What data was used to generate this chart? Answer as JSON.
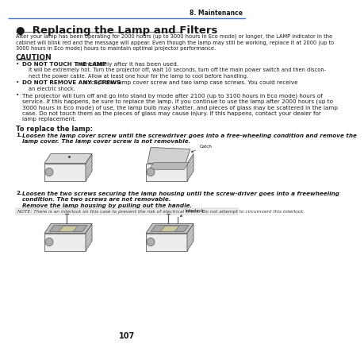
{
  "page_number": "107",
  "chapter": "8. Maintenance",
  "bg_color": "#ffffff",
  "text_color": "#1a1a1a",
  "header_line_color": "#4472c4",
  "section_icon": "●",
  "section_title": "Replacing the Lamp and Filters",
  "intro_line1": "After your lamp has been operating for 2000 hours (up to 3000 hours in Eco mode) or longer, the LAMP indicator in the",
  "intro_line2": "cabinet will blink red and the message will appear. Even though the lamp may still be working, replace it at 2000 (up to",
  "intro_line3": "3000 hours in Eco mode) hours to maintain optimal projector performance.",
  "caution_label": "CAUTION",
  "b1_bold": "DO NOT TOUCH THE LAMP",
  "b1_rest": " immediately after it has been used.",
  "b1_sub1": "It will be extremely hot. Turn the projector off, wait 10 seconds, turn off the main power switch and then discon-",
  "b1_sub2": "nect the power cable. Allow at least one hour for the lamp to cool before handling.",
  "b2_bold": "DO NOT REMOVE ANY SCREWS",
  "b2_rest": " except the lamp cover screw and two lamp case screws. You could receive",
  "b2_sub": "an electric shock.",
  "b3_line1": "The projector will turn off and go into stand by mode after 2100 (up to 3100 hours in Eco mode) hours of",
  "b3_line2": "service. If this happens, be sure to replace the lamp. If you continue to use the lamp after 2000 hours (up to",
  "b3_line3": "3000 hours in Eco mode) of use, the lamp bulb may shatter, and pieces of glass may be scattered in the lamp",
  "b3_line4": "case. Do not touch them as the pieces of glass may cause injury. If this happens, contact your dealer for",
  "b3_line5": "lamp replacement.",
  "to_replace": "To replace the lamp:",
  "s1_line1": "Loosen the lamp cover screw until the screwdriver goes into a free-wheeling condition and remove the",
  "s1_line2": "lamp cover. The lamp cover screw is not removable.",
  "catch_label": "Catch",
  "s2_line1": "Loosen the two screws securing the lamp housing until the screw-driver goes into a freewheeling",
  "s2_line2": "condition. The two screws are not removable.",
  "s2b": "Remove the lamp housing by pulling out the handle.",
  "note": "NOTE: There is an interlock on this case to prevent the risk of electrical shock. Do not attempt to circumvent this interlock.",
  "interlock_label": "Interlock"
}
